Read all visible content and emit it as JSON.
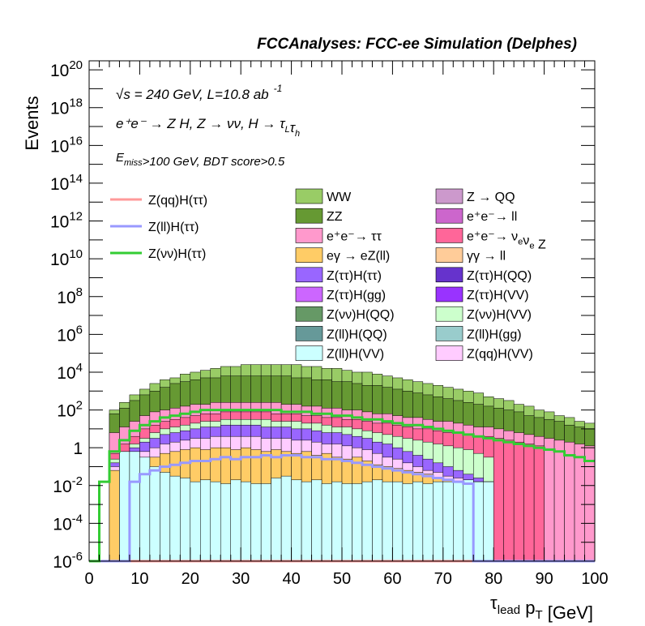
{
  "chart_data": {
    "type": "area",
    "title": "FCCAnalyses: FCC-ee Simulation (Delphes)",
    "annotations": [
      {
        "prefix": "√",
        "main": "s = 240 GeV, L=10.8 ab",
        "sup": "-1"
      },
      "e⁺e⁻ → Z H, Z → νν, H → τ_Lτ_h",
      "E_miss>100 GeV, BDT score>0.5"
    ],
    "xlabel": "τ_lead p_T [GeV]",
    "ylabel": "Events",
    "x_ticks": [
      "0",
      "10",
      "20",
      "30",
      "40",
      "50",
      "60",
      "70",
      "80",
      "90",
      "100"
    ],
    "y_ticks": [
      "10^-6",
      "10^-4",
      "10^-2",
      "1",
      "10^2",
      "10^4",
      "10^6",
      "10^8",
      "10^10",
      "10^12",
      "10^14",
      "10^16",
      "10^18",
      "10^20"
    ],
    "xlim": [
      0,
      100
    ],
    "ylim": [
      1e-06,
      3e+20
    ],
    "y_scale": "log",
    "bin_width": 2,
    "legend_stack": [
      {
        "name": "WW",
        "color": "#99cc66"
      },
      {
        "name": "Z → QQ",
        "color": "#cc99cc"
      },
      {
        "name": "ZZ",
        "color": "#669933"
      },
      {
        "name": "e⁺e⁻→ ll",
        "color": "#cc66cc"
      },
      {
        "name": "e⁺e⁻→ ττ",
        "color": "#ff99cc"
      },
      {
        "name": "e⁺e⁻→ ν_eν_e Z",
        "color": "#ff6699"
      },
      {
        "name": "eγ → eZ(ll)",
        "color": "#ffcc66"
      },
      {
        "name": "γγ → ll",
        "color": "#ffcc99"
      },
      {
        "name": "Z(ττ)H(ττ)",
        "color": "#9966ff"
      },
      {
        "name": "Z(ττ)H(QQ)",
        "color": "#6633cc"
      },
      {
        "name": "Z(ττ)H(gg)",
        "color": "#cc66ff"
      },
      {
        "name": "Z(ττ)H(VV)",
        "color": "#9933ff"
      },
      {
        "name": "Z(νν)H(QQ)",
        "color": "#669966"
      },
      {
        "name": "Z(νν)H(VV)",
        "color": "#ccffcc"
      },
      {
        "name": "Z(ll)H(QQ)",
        "color": "#669999"
      },
      {
        "name": "Z(ll)H(gg)",
        "color": "#99cccc"
      },
      {
        "name": "Z(ll)H(VV)",
        "color": "#ccffff"
      },
      {
        "name": "Z(qq)H(VV)",
        "color": "#ffccff"
      }
    ],
    "legend_signal": [
      {
        "name": "Z(qq)H(ττ)",
        "color": "#ff9999"
      },
      {
        "name": "Z(ll)H(ττ)",
        "color": "#9999ff"
      },
      {
        "name": "Z(νν)H(ττ)",
        "color": "#33cc33"
      }
    ],
    "stack_order_bottom_to_top": [
      "Z(ll)H(VV)",
      "Z(ττ)H(QQ)",
      "Z(ττ)H(VV)",
      "Z(ll)H(gg)",
      "Z(ll)H(QQ)",
      "Z(ττ)H(gg)",
      "Z(νν)H(QQ)",
      "eγ → eZ(ll)",
      "Z(qq)H(VV)",
      "Z(ττ)H(ττ)",
      "Z(νν)H(VV)",
      "e⁺e⁻→ ν_eν_e Z",
      "e⁺e⁻→ ττ",
      "ZZ",
      "WW"
    ],
    "stack_cumulative_log10": [
      [
        -10,
        -10,
        -10,
        -0.2,
        -0.2,
        -0.5,
        -1.0,
        -1.3,
        -1.5,
        -1.6,
        -1.8,
        -1.7,
        -1.8,
        -1.9,
        -1.7,
        -1.8,
        -1.9,
        -1.9,
        -1.6,
        -1.5,
        -1.7,
        -1.8,
        -1.7,
        -1.9,
        -1.8,
        -1.9,
        -1.9,
        -1.8,
        -1.7,
        -1.8,
        -1.8,
        -1.9,
        -1.8,
        -1.9,
        -1.8,
        -1.8,
        -1.8,
        -1.7,
        -1.8,
        -1.8,
        -10,
        -10,
        -10,
        -10,
        -10,
        -10,
        -10,
        -10,
        -10,
        -10
      ],
      [
        -10,
        -10,
        -10,
        -10,
        -10,
        -10,
        -10,
        -10,
        -10,
        -10,
        -10,
        -10,
        -10,
        -10,
        -10,
        -10,
        -10,
        -10,
        -10,
        -10,
        -10,
        -10,
        -10,
        -10,
        -10,
        -10,
        -10,
        -10,
        -10,
        -10,
        -10,
        -10,
        -10,
        -10,
        -10,
        -10,
        -10,
        -10,
        -10,
        -10,
        -10,
        -10,
        -10,
        -10,
        -10,
        -10,
        -10,
        -10,
        -10,
        -10
      ],
      [
        -10,
        -10,
        -10,
        -10,
        -10,
        -10,
        -10,
        -10,
        -10,
        -10,
        -10,
        -10,
        -10,
        -10,
        -10,
        -10,
        -10,
        -10,
        -10,
        -10,
        -10,
        -10,
        -10,
        -10,
        -10,
        -10,
        -10,
        -10,
        -10,
        -10,
        -10,
        -10,
        -10,
        -10,
        -10,
        -10,
        -10,
        -10,
        -10,
        -10,
        -10,
        -10,
        -10,
        -10,
        -10,
        -10,
        -10,
        -10,
        -10,
        -10
      ],
      [
        -10,
        -10,
        -10,
        -10,
        -10,
        -10,
        -10,
        -10,
        -10,
        -10,
        -10,
        -10,
        -10,
        -10,
        -10,
        -10,
        -10,
        -10,
        -10,
        -10,
        -10,
        -10,
        -10,
        -10,
        -10,
        -10,
        -10,
        -10,
        -10,
        -10,
        -10,
        -10,
        -10,
        -10,
        -10,
        -10,
        -10,
        -10,
        -10,
        -10,
        -10,
        -10,
        -10,
        -10,
        -10,
        -10,
        -10,
        -10,
        -10,
        -10
      ],
      [
        -10,
        -10,
        -10,
        -10,
        -10,
        -10,
        -10,
        -10,
        -10,
        -10,
        -10,
        -10,
        -10,
        -10,
        -10,
        -10,
        -10,
        -10,
        -10,
        -10,
        -10,
        -10,
        -10,
        -10,
        -10,
        -10,
        -10,
        -10,
        -10,
        -10,
        -10,
        -10,
        -10,
        -10,
        -10,
        -10,
        -10,
        -10,
        -10,
        -10,
        -10,
        -10,
        -10,
        -10,
        -10,
        -10,
        -10,
        -10,
        -10,
        -10
      ],
      [
        -10,
        -10,
        -10,
        -10,
        -10,
        -10,
        -10,
        -10,
        -10,
        -10,
        -10,
        -10,
        -10,
        -10,
        -10,
        -10,
        -10,
        -10,
        -10,
        -10,
        -10,
        -10,
        -10,
        -10,
        -10,
        -10,
        -10,
        -10,
        -10,
        -10,
        -10,
        -10,
        -10,
        -10,
        -10,
        -10,
        -10,
        -10,
        -10,
        -10,
        -10,
        -10,
        -10,
        -10,
        -10,
        -10,
        -10,
        -10,
        -10,
        -10
      ],
      [
        -10,
        -10,
        -10,
        -10,
        -10,
        -10,
        -10,
        -10,
        -10,
        -10,
        -10,
        -10,
        -10,
        -10,
        -10,
        -10,
        -10,
        -10,
        -10,
        -10,
        -10,
        -10,
        -10,
        -10,
        -10,
        -10,
        -10,
        -10,
        -10,
        -10,
        -10,
        -10,
        -10,
        -10,
        -10,
        -10,
        -10,
        -10,
        -10,
        -10,
        -10,
        -10,
        -10,
        -10,
        -10,
        -10,
        -10,
        -10,
        -10,
        -10
      ],
      [
        -10,
        -10,
        -1.2,
        -1.0,
        -1.1,
        -0.7,
        -0.5,
        -0.3,
        -0.2,
        -0.1,
        0.0,
        -0.1,
        0.0,
        0.0,
        -0.1,
        0.0,
        -0.1,
        -0.2,
        -0.1,
        -0.2,
        -0.3,
        -0.2,
        -0.4,
        -0.3,
        -0.5,
        -0.6,
        -0.5,
        -0.7,
        -0.9,
        -1.0,
        -1.1,
        -1.2,
        -1.3,
        -1.4,
        -1.6,
        -1.7,
        -1.8,
        -1.7,
        -1.8,
        -1.8,
        -10,
        -10,
        -10,
        -10,
        -10,
        -10,
        -10,
        -10,
        -10,
        -10
      ],
      [
        -10,
        -10,
        -1.0,
        -0.8,
        -0.6,
        -0.2,
        0.0,
        0.2,
        0.3,
        0.4,
        0.5,
        0.5,
        0.6,
        0.6,
        0.6,
        0.6,
        0.6,
        0.5,
        0.5,
        0.5,
        0.4,
        0.4,
        0.3,
        0.2,
        0.2,
        0.1,
        0.0,
        -0.1,
        -0.3,
        -0.5,
        -0.6,
        -0.8,
        -1.0,
        -1.2,
        -1.3,
        -1.5,
        -1.6,
        -1.7,
        -1.8,
        -1.8,
        -10,
        -10,
        -10,
        -10,
        -10,
        -10,
        -10,
        -10,
        -10,
        -10
      ],
      [
        -10,
        -10,
        -0.8,
        -0.4,
        0.0,
        0.3,
        0.5,
        0.7,
        0.8,
        0.9,
        1.0,
        1.1,
        1.1,
        1.2,
        1.2,
        1.2,
        1.2,
        1.1,
        1.1,
        1.1,
        1.0,
        1.0,
        0.9,
        0.8,
        0.8,
        0.7,
        0.6,
        0.5,
        0.3,
        0.2,
        0.0,
        -0.2,
        -0.4,
        -0.6,
        -0.8,
        -1.0,
        -1.2,
        -1.4,
        -1.6,
        -1.8,
        -10,
        -10,
        -10,
        -10,
        -10,
        -10,
        -10,
        -10,
        -10,
        -10
      ],
      [
        -10,
        -10,
        -0.6,
        -0.2,
        0.2,
        0.5,
        0.8,
        1.0,
        1.1,
        1.2,
        1.3,
        1.4,
        1.4,
        1.5,
        1.5,
        1.5,
        1.5,
        1.5,
        1.4,
        1.4,
        1.4,
        1.3,
        1.3,
        1.2,
        1.1,
        1.1,
        1.0,
        0.9,
        0.8,
        0.7,
        0.6,
        0.5,
        0.4,
        0.3,
        0.2,
        0.1,
        0.0,
        -0.1,
        -0.3,
        -0.5,
        -10,
        -10,
        -10,
        -10,
        -10,
        -10,
        -10,
        -10,
        -10,
        -10
      ],
      [
        -10,
        -10,
        -0.3,
        0.2,
        0.6,
        1.0,
        1.2,
        1.4,
        1.5,
        1.6,
        1.7,
        1.8,
        1.8,
        1.9,
        1.9,
        1.9,
        1.9,
        1.9,
        1.8,
        1.8,
        1.8,
        1.7,
        1.7,
        1.6,
        1.6,
        1.5,
        1.5,
        1.4,
        1.3,
        1.3,
        1.2,
        1.1,
        1.0,
        1.0,
        0.9,
        0.8,
        0.8,
        0.7,
        0.6,
        0.6,
        0.5,
        0.4,
        0.3,
        0.2,
        0.1,
        -10,
        -10,
        -10,
        -10,
        -10
      ],
      [
        -10,
        -10,
        0.8,
        1.1,
        1.4,
        1.7,
        1.9,
        2.0,
        2.1,
        2.2,
        2.3,
        2.3,
        2.4,
        2.4,
        2.4,
        2.4,
        2.4,
        2.4,
        2.4,
        2.3,
        2.3,
        2.2,
        2.2,
        2.1,
        2.1,
        2.0,
        2.0,
        1.9,
        1.8,
        1.8,
        1.7,
        1.6,
        1.6,
        1.5,
        1.4,
        1.4,
        1.3,
        1.2,
        1.1,
        1.1,
        1.0,
        0.9,
        0.8,
        0.7,
        0.6,
        0.5,
        0.4,
        0.3,
        0.2,
        0.1
      ],
      [
        -10,
        -10,
        1.8,
        2.1,
        2.5,
        2.8,
        3.0,
        3.2,
        3.4,
        3.5,
        3.6,
        3.7,
        3.7,
        3.8,
        3.8,
        3.8,
        3.8,
        3.8,
        3.8,
        3.8,
        3.7,
        3.7,
        3.6,
        3.6,
        3.5,
        3.5,
        3.4,
        3.3,
        3.3,
        3.2,
        3.1,
        3.0,
        2.9,
        2.8,
        2.7,
        2.6,
        2.5,
        2.4,
        2.3,
        2.2,
        2.1,
        2.0,
        1.9,
        1.7,
        1.6,
        1.5,
        1.4,
        1.2,
        1.1,
        1.0
      ],
      [
        -10,
        -10,
        2.0,
        2.4,
        2.8,
        3.1,
        3.4,
        3.6,
        3.7,
        3.9,
        4.0,
        4.1,
        4.2,
        4.3,
        4.3,
        4.4,
        4.4,
        4.4,
        4.4,
        4.4,
        4.4,
        4.3,
        4.3,
        4.2,
        4.2,
        4.1,
        4.0,
        4.0,
        3.9,
        3.8,
        3.7,
        3.6,
        3.5,
        3.4,
        3.3,
        3.2,
        3.1,
        3.0,
        2.9,
        2.7,
        2.6,
        2.5,
        2.3,
        2.2,
        2.0,
        1.9,
        1.7,
        1.6,
        1.4,
        1.3
      ]
    ],
    "signal_log10": [
      [
        -10,
        -10,
        -10,
        -10,
        -10,
        -10,
        -10,
        -10,
        -10,
        -10,
        -10,
        -10,
        -10,
        -10,
        -10,
        -10,
        -10,
        -10,
        -10,
        -10,
        -10,
        -10,
        -10,
        -10,
        -10,
        -10,
        -10,
        -10,
        -10,
        -10,
        -10,
        -10,
        -10,
        -10,
        -10,
        -10,
        -10,
        -10,
        -10,
        -10,
        -10,
        -10,
        -10,
        -10,
        -10,
        -10,
        -10,
        -10,
        -10,
        -10
      ],
      [
        -10,
        -10,
        -10,
        -10,
        -1.8,
        -1.4,
        -1.2,
        -1.0,
        -0.9,
        -0.8,
        -0.7,
        -0.7,
        -0.6,
        -0.5,
        -0.6,
        -0.5,
        -0.5,
        -0.4,
        -0.5,
        -0.4,
        -0.4,
        -0.5,
        -0.5,
        -0.6,
        -0.6,
        -0.7,
        -0.8,
        -0.9,
        -1.0,
        -1.1,
        -1.2,
        -1.3,
        -1.4,
        -1.5,
        -1.6,
        -1.7,
        -1.8,
        -1.9,
        -10,
        -10,
        -10,
        -10,
        -10,
        -10,
        -10,
        -10,
        -10,
        -10,
        -10,
        -10
      ],
      [
        -10,
        -1.8,
        -0.2,
        0.4,
        0.9,
        1.2,
        1.4,
        1.6,
        1.7,
        1.8,
        1.9,
        2.0,
        2.0,
        2.0,
        2.0,
        2.0,
        2.0,
        2.0,
        2.0,
        1.9,
        1.9,
        1.9,
        1.8,
        1.8,
        1.7,
        1.7,
        1.6,
        1.5,
        1.5,
        1.4,
        1.3,
        1.2,
        1.2,
        1.1,
        1.0,
        0.9,
        0.8,
        0.7,
        0.6,
        0.5,
        0.4,
        0.3,
        0.2,
        0.1,
        0.0,
        -0.1,
        -0.2,
        -0.4,
        -0.5,
        -0.7
      ]
    ]
  }
}
